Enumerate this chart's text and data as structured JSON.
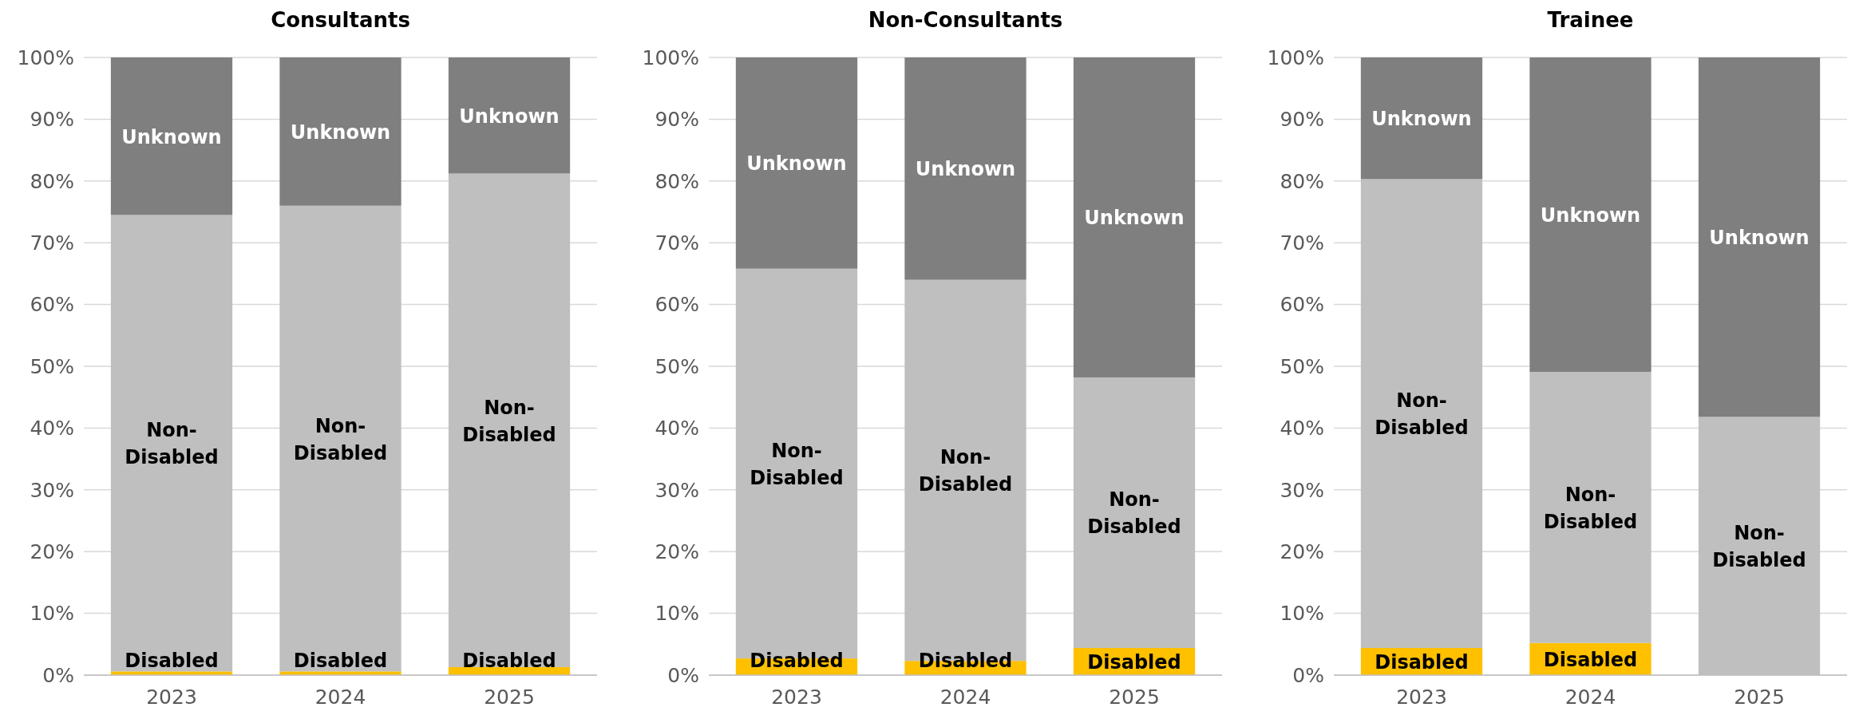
{
  "chart_data": [
    {
      "type": "bar",
      "stacked": true,
      "title": "Consultants",
      "categories": [
        "2023",
        "2024",
        "2025"
      ],
      "ylim": [
        0,
        100
      ],
      "yticks": [
        {
          "value": 0,
          "label": "0%"
        },
        {
          "value": 10,
          "label": "10%"
        },
        {
          "value": 20,
          "label": "20%"
        },
        {
          "value": 30,
          "label": "30%"
        },
        {
          "value": 40,
          "label": "40%"
        },
        {
          "value": 50,
          "label": "50%"
        },
        {
          "value": 60,
          "label": "60%"
        },
        {
          "value": 70,
          "label": "70%"
        },
        {
          "value": 80,
          "label": "80%"
        },
        {
          "value": 90,
          "label": "90%"
        },
        {
          "value": 100,
          "label": "100%"
        }
      ],
      "grid": "y",
      "legend": false,
      "series": [
        {
          "name": "Disabled",
          "color": "#ffc000",
          "values": [
            0.6,
            0.6,
            1.3
          ]
        },
        {
          "name": "Non-Disabled",
          "color": "#bfbfbf",
          "values": [
            73.9,
            75.4,
            79.9
          ]
        },
        {
          "name": "Unknown",
          "color": "#7f7f7f",
          "values": [
            25.5,
            24,
            18.8
          ]
        }
      ]
    },
    {
      "type": "bar",
      "stacked": true,
      "title": "Non-Consultants",
      "categories": [
        "2023",
        "2024",
        "2025"
      ],
      "ylim": [
        0,
        100
      ],
      "yticks": [
        {
          "value": 0,
          "label": "0%"
        },
        {
          "value": 10,
          "label": "10%"
        },
        {
          "value": 20,
          "label": "20%"
        },
        {
          "value": 30,
          "label": "30%"
        },
        {
          "value": 40,
          "label": "40%"
        },
        {
          "value": 50,
          "label": "50%"
        },
        {
          "value": 60,
          "label": "60%"
        },
        {
          "value": 70,
          "label": "70%"
        },
        {
          "value": 80,
          "label": "80%"
        },
        {
          "value": 90,
          "label": "90%"
        },
        {
          "value": 100,
          "label": "100%"
        }
      ],
      "grid": "y",
      "legend": false,
      "series": [
        {
          "name": "Disabled",
          "color": "#ffc000",
          "values": [
            2.7,
            2.3,
            4.4
          ]
        },
        {
          "name": "Non-Disabled",
          "color": "#bfbfbf",
          "values": [
            63.1,
            61.7,
            43.8
          ]
        },
        {
          "name": "Unknown",
          "color": "#7f7f7f",
          "values": [
            34.2,
            36,
            51.8
          ]
        }
      ]
    },
    {
      "type": "bar",
      "stacked": true,
      "title": "Trainee",
      "categories": [
        "2023",
        "2024",
        "2025"
      ],
      "ylim": [
        0,
        100
      ],
      "yticks": [
        {
          "value": 0,
          "label": "0%"
        },
        {
          "value": 10,
          "label": "10%"
        },
        {
          "value": 20,
          "label": "20%"
        },
        {
          "value": 30,
          "label": "30%"
        },
        {
          "value": 40,
          "label": "40%"
        },
        {
          "value": 50,
          "label": "50%"
        },
        {
          "value": 60,
          "label": "60%"
        },
        {
          "value": 70,
          "label": "70%"
        },
        {
          "value": 80,
          "label": "80%"
        },
        {
          "value": 90,
          "label": "90%"
        },
        {
          "value": 100,
          "label": "100%"
        }
      ],
      "grid": "y",
      "legend": false,
      "series": [
        {
          "name": "Disabled",
          "color": "#ffc000",
          "values": [
            4.4,
            5.2,
            0
          ]
        },
        {
          "name": "Non-Disabled",
          "color": "#bfbfbf",
          "values": [
            75.9,
            43.9,
            41.8
          ]
        },
        {
          "name": "Unknown",
          "color": "#7f7f7f",
          "values": [
            19.7,
            50.9,
            58.2
          ]
        }
      ]
    }
  ]
}
